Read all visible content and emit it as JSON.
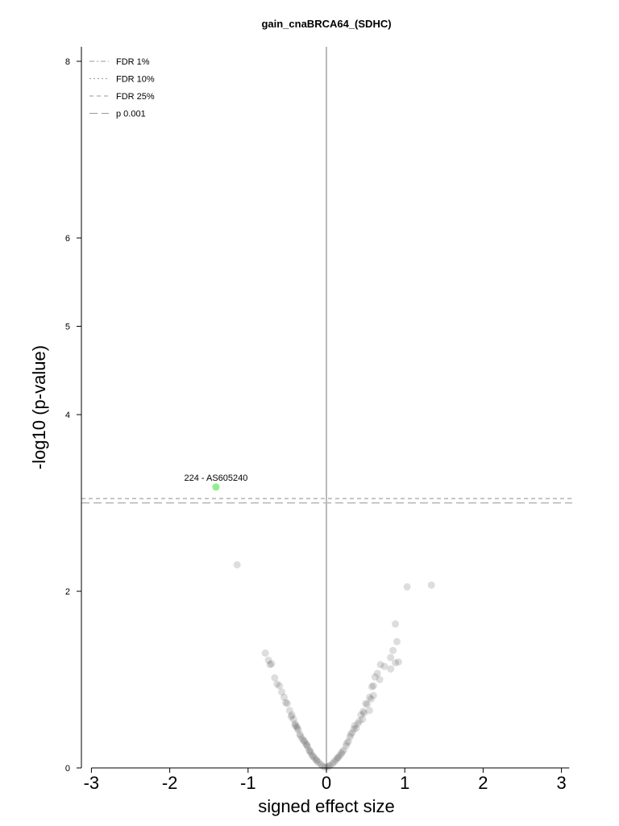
{
  "chart_data": {
    "type": "scatter",
    "title": "gain_cnaBRCA64_(SDHC)",
    "xlabel": "signed effect size",
    "ylabel": "-log10 (p-value)",
    "xlim": [
      -3.1,
      3.1
    ],
    "ylim": [
      0,
      8.2
    ],
    "x_ticks": [
      -3,
      -2,
      -1,
      0,
      1,
      2,
      3
    ],
    "x_tick_labels": [
      "-3",
      "-2",
      "-1",
      "0",
      "1",
      "2",
      "3"
    ],
    "y_ticks": [
      0,
      2,
      4,
      5,
      6,
      8
    ],
    "y_tick_labels": [
      "0",
      "2",
      "4",
      "5",
      "6",
      "8"
    ],
    "grid": false,
    "legend_position": "top-left",
    "legend": [
      {
        "label": "FDR 1%",
        "dash": "dashdot"
      },
      {
        "label": "FDR 10%",
        "dash": "dotted"
      },
      {
        "label": "FDR 25%",
        "dash": "dashed"
      },
      {
        "label": "p 0.001",
        "dash": "longdash"
      }
    ],
    "threshold_lines": [
      {
        "name": "FDR 25%",
        "y": 3.05
      },
      {
        "name": "p 0.001",
        "y": 3.0
      }
    ],
    "colors": {
      "points": "#444444",
      "highlight": "#90ee90",
      "zero_line": "#bbbbbb",
      "threshold": "#999999",
      "axis": "#000000"
    },
    "highlight": [
      {
        "label": "224 - AS605240",
        "x": -1.41,
        "y": 3.18
      }
    ],
    "points": [
      [
        -1.14,
        2.3
      ],
      [
        1.03,
        2.05
      ],
      [
        1.34,
        2.07
      ],
      [
        0.88,
        1.63
      ],
      [
        0.9,
        1.43
      ],
      [
        0.85,
        1.33
      ],
      [
        0.92,
        1.2
      ],
      [
        0.88,
        1.19
      ],
      [
        0.82,
        1.12
      ],
      [
        0.82,
        1.25
      ],
      [
        0.74,
        1.15
      ],
      [
        0.69,
        1.17
      ],
      [
        0.65,
        1.07
      ],
      [
        0.62,
        1.03
      ],
      [
        0.68,
        1.0
      ],
      [
        0.6,
        0.93
      ],
      [
        0.58,
        0.92
      ],
      [
        0.6,
        0.82
      ],
      [
        0.55,
        0.8
      ],
      [
        0.5,
        0.73
      ],
      [
        0.52,
        0.72
      ],
      [
        0.48,
        0.62
      ],
      [
        0.55,
        0.65
      ],
      [
        0.44,
        0.6
      ],
      [
        0.46,
        0.55
      ],
      [
        0.4,
        0.5
      ],
      [
        0.38,
        0.45
      ],
      [
        0.36,
        0.48
      ],
      [
        0.33,
        0.4
      ],
      [
        0.3,
        0.35
      ],
      [
        0.28,
        0.3
      ],
      [
        0.25,
        0.25
      ],
      [
        0.22,
        0.2
      ],
      [
        0.2,
        0.18
      ],
      [
        0.17,
        0.14
      ],
      [
        0.15,
        0.12
      ],
      [
        0.12,
        0.09
      ],
      [
        0.1,
        0.07
      ],
      [
        0.08,
        0.05
      ],
      [
        0.05,
        0.03
      ],
      [
        0.03,
        0.02
      ],
      [
        0.01,
        0.01
      ],
      [
        0.26,
        0.28
      ],
      [
        0.35,
        0.44
      ],
      [
        0.42,
        0.53
      ],
      [
        0.31,
        0.38
      ],
      [
        0.19,
        0.16
      ],
      [
        0.14,
        0.11
      ],
      [
        0.47,
        0.64
      ],
      [
        0.57,
        0.78
      ],
      [
        -0.78,
        1.3
      ],
      [
        -0.74,
        1.22
      ],
      [
        -0.72,
        1.17
      ],
      [
        -0.7,
        1.18
      ],
      [
        -0.66,
        1.02
      ],
      [
        -0.63,
        0.95
      ],
      [
        -0.6,
        0.93
      ],
      [
        -0.57,
        0.86
      ],
      [
        -0.54,
        0.8
      ],
      [
        -0.5,
        0.73
      ],
      [
        -0.47,
        0.65
      ],
      [
        -0.44,
        0.6
      ],
      [
        -0.42,
        0.55
      ],
      [
        -0.4,
        0.5
      ],
      [
        -0.38,
        0.47
      ],
      [
        -0.36,
        0.43
      ],
      [
        -0.34,
        0.38
      ],
      [
        -0.31,
        0.33
      ],
      [
        -0.28,
        0.3
      ],
      [
        -0.26,
        0.27
      ],
      [
        -0.24,
        0.24
      ],
      [
        -0.22,
        0.2
      ],
      [
        -0.2,
        0.17
      ],
      [
        -0.18,
        0.14
      ],
      [
        -0.15,
        0.11
      ],
      [
        -0.12,
        0.08
      ],
      [
        -0.1,
        0.06
      ],
      [
        -0.07,
        0.04
      ],
      [
        -0.05,
        0.02
      ],
      [
        -0.02,
        0.01
      ],
      [
        -0.33,
        0.36
      ],
      [
        -0.29,
        0.31
      ],
      [
        -0.4,
        0.48
      ],
      [
        -0.37,
        0.45
      ],
      [
        -0.25,
        0.26
      ],
      [
        -0.21,
        0.19
      ],
      [
        -0.17,
        0.13
      ],
      [
        -0.13,
        0.09
      ],
      [
        -0.45,
        0.58
      ],
      [
        -0.52,
        0.74
      ]
    ]
  }
}
